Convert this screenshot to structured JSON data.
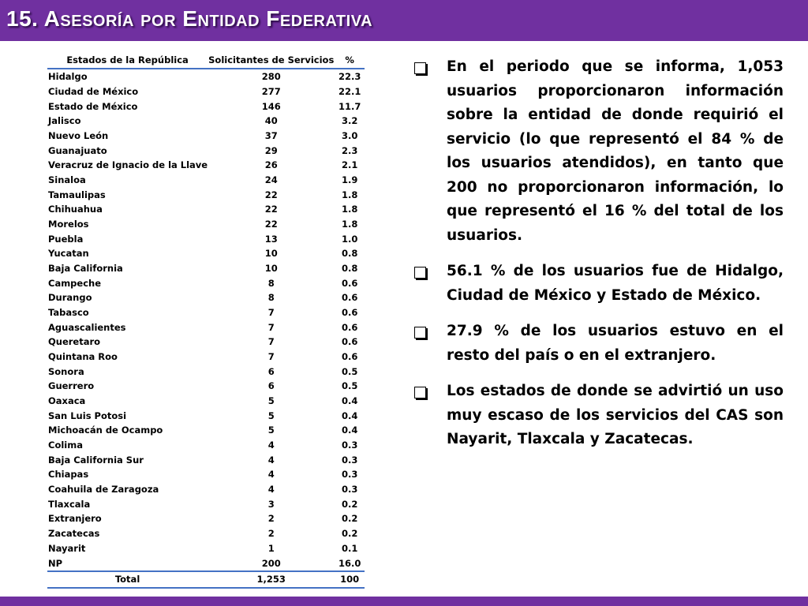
{
  "title": "15. Asesoría por Entidad Federativa",
  "table": {
    "headers": [
      "Estados de la República",
      "Solicitantes de Servicios",
      "%"
    ],
    "rows": [
      {
        "state": "Hidalgo",
        "count": "280",
        "pct": "22.3"
      },
      {
        "state": "Ciudad de México",
        "count": "277",
        "pct": "22.1"
      },
      {
        "state": "Estado de México",
        "count": "146",
        "pct": "11.7"
      },
      {
        "state": "Jalisco",
        "count": "40",
        "pct": "3.2"
      },
      {
        "state": "Nuevo León",
        "count": "37",
        "pct": "3.0"
      },
      {
        "state": "Guanajuato",
        "count": "29",
        "pct": "2.3"
      },
      {
        "state": "Veracruz de Ignacio de la Llave",
        "count": "26",
        "pct": "2.1"
      },
      {
        "state": "Sinaloa",
        "count": "24",
        "pct": "1.9"
      },
      {
        "state": "Tamaulipas",
        "count": "22",
        "pct": "1.8"
      },
      {
        "state": "Chihuahua",
        "count": "22",
        "pct": "1.8"
      },
      {
        "state": "Morelos",
        "count": "22",
        "pct": "1.8"
      },
      {
        "state": "Puebla",
        "count": "13",
        "pct": "1.0"
      },
      {
        "state": "Yucatan",
        "count": "10",
        "pct": "0.8"
      },
      {
        "state": "Baja California",
        "count": "10",
        "pct": "0.8"
      },
      {
        "state": "Campeche",
        "count": "8",
        "pct": "0.6"
      },
      {
        "state": "Durango",
        "count": "8",
        "pct": "0.6"
      },
      {
        "state": "Tabasco",
        "count": "7",
        "pct": "0.6"
      },
      {
        "state": "Aguascalientes",
        "count": "7",
        "pct": "0.6"
      },
      {
        "state": "Queretaro",
        "count": "7",
        "pct": "0.6"
      },
      {
        "state": "Quintana Roo",
        "count": "7",
        "pct": "0.6"
      },
      {
        "state": "Sonora",
        "count": "6",
        "pct": "0.5"
      },
      {
        "state": "Guerrero",
        "count": "6",
        "pct": "0.5"
      },
      {
        "state": "Oaxaca",
        "count": "5",
        "pct": "0.4"
      },
      {
        "state": "San Luis Potosi",
        "count": "5",
        "pct": "0.4"
      },
      {
        "state": "Michoacán de Ocampo",
        "count": "5",
        "pct": "0.4"
      },
      {
        "state": "Colima",
        "count": "4",
        "pct": "0.3"
      },
      {
        "state": "Baja California Sur",
        "count": "4",
        "pct": "0.3"
      },
      {
        "state": "Chiapas",
        "count": "4",
        "pct": "0.3"
      },
      {
        "state": "Coahuila de Zaragoza",
        "count": "4",
        "pct": "0.3"
      },
      {
        "state": "Tlaxcala",
        "count": "3",
        "pct": "0.2"
      },
      {
        "state": "Extranjero",
        "count": "2",
        "pct": "0.2"
      },
      {
        "state": "Zacatecas",
        "count": "2",
        "pct": "0.2"
      },
      {
        "state": "Nayarit",
        "count": "1",
        "pct": "0.1"
      },
      {
        "state": "NP",
        "count": "200",
        "pct": "16.0"
      }
    ],
    "total": {
      "label": "Total",
      "count": "1,253",
      "pct": "100"
    }
  },
  "bullets": [
    "En el periodo que se informa, 1,053 usuarios proporcionaron información sobre la entidad de donde requirió el servicio (lo que representó el 84 % de los usuarios atendidos), en tanto que 200 no proporcionaron información, lo que representó el 16 % del total de los usuarios.",
    "56.1 % de los usuarios fue de Hidalgo, Ciudad de México y Estado de México.",
    "27.9 % de los usuarios estuvo en el resto del país o en el extranjero.",
    "Los estados de donde se advirtió un uso muy escaso de los servicios del CAS son Nayarit, Tlaxcala y Zacatecas."
  ],
  "bullet_icon": "checkbox-square-icon",
  "colors": {
    "header_bar": "#7030a0",
    "table_rule": "#4472c4",
    "title_text": "#ffffff"
  }
}
